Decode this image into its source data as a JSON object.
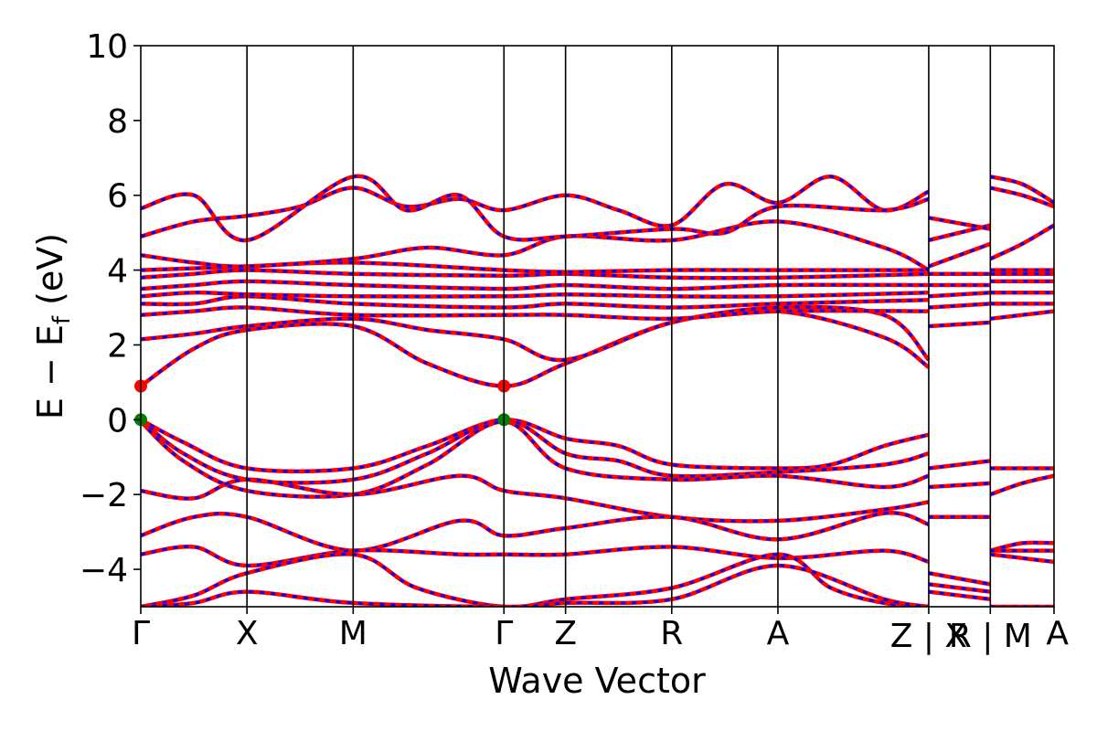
{
  "chart_data": {
    "type": "line",
    "xlabel": "Wave Vector",
    "ylabel_main": "E − E",
    "ylabel_sub": "f",
    "ylabel_unit": " (eV)",
    "ylim": [
      -5,
      10
    ],
    "yticks": [
      -4,
      -2,
      0,
      2,
      4,
      6,
      8,
      10
    ],
    "ytick_labels": [
      "−4",
      "−2",
      "0",
      "2",
      "4",
      "6",
      "8",
      "10"
    ],
    "xlim": [
      0,
      8.6
    ],
    "kpoints": [
      {
        "label": "Γ",
        "x": 0
      },
      {
        "label": "X",
        "x": 1.0
      },
      {
        "label": "M",
        "x": 2.0
      },
      {
        "label": "Γ",
        "x": 3.42
      },
      {
        "label": "Z",
        "x": 4.0
      },
      {
        "label": "R",
        "x": 5.0
      },
      {
        "label": "A",
        "x": 6.0
      },
      {
        "label": "Z | X",
        "x": 7.42
      },
      {
        "label": "R | M",
        "x": 8.0
      },
      {
        "label": "A",
        "x": 8.6
      }
    ],
    "segment_breaks": [
      7.42,
      8.0
    ],
    "colors": {
      "primary": "#ff0000",
      "overlay": "#0000ff",
      "cbm": "#ff0000",
      "vbm": "#008000",
      "grid": "#000000"
    },
    "grid": false,
    "band_extrema": [
      {
        "label": "CBM",
        "x": 0,
        "y": 0.9
      },
      {
        "label": "CBM",
        "x": 3.42,
        "y": 0.9
      },
      {
        "label": "VBM",
        "x": 0,
        "y": 0.0
      },
      {
        "label": "VBM",
        "x": 3.42,
        "y": 0.0
      }
    ],
    "series": [
      {
        "x": [
          0,
          0.5,
          1.0,
          2.0,
          2.7,
          3.42,
          4.0,
          5.0,
          6.0,
          7.0,
          7.42
        ],
        "values": [
          0.9,
          1.9,
          2.4,
          2.5,
          1.5,
          0.9,
          1.5,
          2.6,
          2.9,
          2.2,
          1.4
        ]
      },
      {
        "x": [
          0,
          0.5,
          1.0,
          2.0,
          2.7,
          3.42,
          4.0,
          5.0,
          6.0,
          7.0,
          7.42
        ],
        "values": [
          2.15,
          2.3,
          2.5,
          2.7,
          2.4,
          2.15,
          1.6,
          2.6,
          3.0,
          2.8,
          1.6
        ]
      },
      {
        "x": [
          0,
          0.5,
          1.0,
          2.0,
          3.42,
          4.0,
          5.0,
          6.0,
          7.42
        ],
        "values": [
          2.8,
          2.9,
          3.0,
          2.8,
          2.8,
          2.8,
          2.7,
          2.9,
          2.9
        ]
      },
      {
        "x": [
          0,
          0.5,
          1.0,
          2.0,
          3.42,
          4.0,
          5.0,
          6.0,
          7.42
        ],
        "values": [
          3.1,
          3.1,
          3.3,
          3.1,
          3.0,
          3.1,
          3.0,
          3.1,
          3.2
        ]
      },
      {
        "x": [
          0,
          0.5,
          1.0,
          2.0,
          3.42,
          4.0,
          5.0,
          6.0,
          7.42
        ],
        "values": [
          3.3,
          3.4,
          3.35,
          3.3,
          3.3,
          3.35,
          3.3,
          3.3,
          3.4
        ]
      },
      {
        "x": [
          0,
          0.5,
          1.0,
          2.0,
          3.42,
          4.0,
          5.0,
          6.0,
          7.42
        ],
        "values": [
          3.5,
          3.6,
          3.7,
          3.6,
          3.5,
          3.6,
          3.5,
          3.6,
          3.6
        ]
      },
      {
        "x": [
          0,
          0.5,
          1.0,
          2.0,
          3.42,
          4.0,
          5.0,
          6.0,
          7.42
        ],
        "values": [
          3.8,
          3.9,
          4.0,
          3.9,
          3.85,
          3.9,
          3.8,
          3.8,
          3.9
        ]
      },
      {
        "x": [
          0,
          0.5,
          1.0,
          2.0,
          3.42,
          4.0,
          5.0,
          6.0,
          7.42
        ],
        "values": [
          4.0,
          4.05,
          4.1,
          4.2,
          4.0,
          3.95,
          4.0,
          4.0,
          4.0
        ]
      },
      {
        "x": [
          0,
          0.5,
          1.0,
          2.0,
          2.7,
          3.42,
          4.0,
          5.0,
          6.0,
          7.0,
          7.42
        ],
        "values": [
          4.4,
          4.2,
          4.1,
          4.3,
          4.6,
          4.4,
          4.9,
          4.8,
          5.3,
          4.6,
          4.0
        ]
      },
      {
        "x": [
          0,
          0.5,
          1.0,
          1.5,
          2.0,
          2.5,
          3.0,
          3.42,
          4.0,
          4.5,
          5.0,
          5.5,
          6.0,
          6.5,
          7.0,
          7.42
        ],
        "values": [
          4.9,
          5.3,
          5.45,
          5.7,
          6.2,
          5.7,
          5.9,
          5.6,
          6.0,
          5.6,
          5.2,
          6.3,
          5.8,
          6.5,
          5.6,
          6.1
        ]
      },
      {
        "x": [
          0,
          0.5,
          1.0,
          2.0,
          2.5,
          3.0,
          3.42,
          4.0,
          5.0,
          5.5,
          6.0,
          7.0,
          7.42
        ],
        "values": [
          5.65,
          6.0,
          4.8,
          6.5,
          5.6,
          6.0,
          4.9,
          4.9,
          5.1,
          5.0,
          5.7,
          5.6,
          5.9
        ]
      },
      {
        "x": [
          0,
          0.4,
          1.0,
          2.0,
          2.7,
          3.42,
          4.0,
          4.5,
          5.0,
          6.0,
          6.5,
          7.0,
          7.42
        ],
        "values": [
          0.0,
          -0.6,
          -1.3,
          -1.3,
          -0.7,
          0.0,
          -0.5,
          -0.7,
          -1.2,
          -1.3,
          -1.2,
          -0.7,
          -0.4
        ]
      },
      {
        "x": [
          0,
          0.4,
          1.0,
          2.0,
          2.7,
          3.42,
          4.0,
          4.5,
          5.0,
          6.0,
          7.0,
          7.42
        ],
        "values": [
          0.0,
          -0.9,
          -1.6,
          -1.6,
          -0.9,
          0.0,
          -0.9,
          -1.1,
          -1.5,
          -1.4,
          -1.2,
          -0.9
        ]
      },
      {
        "x": [
          0,
          0.4,
          1.0,
          2.0,
          2.7,
          3.42,
          4.0,
          5.0,
          6.0,
          7.0,
          7.42
        ],
        "values": [
          -0.05,
          -1.1,
          -1.9,
          -2.0,
          -1.2,
          -0.05,
          -1.3,
          -1.6,
          -1.5,
          -1.8,
          -1.5
        ]
      },
      {
        "x": [
          0,
          0.5,
          1.0,
          2.0,
          3.0,
          3.42,
          4.0,
          5.0,
          6.0,
          7.0,
          7.42
        ],
        "values": [
          -1.9,
          -2.1,
          -1.6,
          -2.0,
          -1.5,
          -1.9,
          -2.1,
          -2.6,
          -2.7,
          -2.4,
          -2.2
        ]
      },
      {
        "x": [
          0,
          0.5,
          1.0,
          2.0,
          3.0,
          3.42,
          4.0,
          5.0,
          6.0,
          7.0,
          7.42
        ],
        "values": [
          -3.1,
          -2.6,
          -2.6,
          -3.5,
          -2.7,
          -3.1,
          -2.9,
          -2.6,
          -3.2,
          -2.5,
          -2.8
        ]
      },
      {
        "x": [
          0,
          0.5,
          1.0,
          2.0,
          3.0,
          3.42,
          4.0,
          5.0,
          6.0,
          7.0,
          7.42
        ],
        "values": [
          -3.6,
          -3.4,
          -3.9,
          -3.5,
          -3.6,
          -3.6,
          -3.6,
          -3.4,
          -3.7,
          -3.5,
          -3.8
        ]
      },
      {
        "x": [
          0,
          0.5,
          1.0,
          2.0,
          2.6,
          3.42,
          4.0,
          5.0,
          6.0,
          6.5,
          7.0,
          7.42
        ],
        "values": [
          -5.0,
          -4.7,
          -4.1,
          -3.6,
          -4.5,
          -5.0,
          -4.8,
          -4.5,
          -3.6,
          -4.5,
          -4.9,
          -5.0
        ]
      },
      {
        "x": [
          0,
          0.5,
          1.0,
          2.0,
          3.42,
          4.0,
          5.0,
          6.0,
          7.0,
          7.42
        ],
        "values": [
          -5.0,
          -4.9,
          -4.6,
          -4.9,
          -5.0,
          -4.9,
          -4.8,
          -3.9,
          -4.8,
          -5.0
        ]
      },
      {
        "x": [
          7.42,
          8.0
        ],
        "values": [
          2.5,
          2.6
        ]
      },
      {
        "x": [
          7.42,
          8.0
        ],
        "values": [
          3.0,
          3.1
        ]
      },
      {
        "x": [
          7.42,
          8.0
        ],
        "values": [
          3.3,
          3.4
        ]
      },
      {
        "x": [
          7.42,
          8.0
        ],
        "values": [
          3.6,
          3.6
        ]
      },
      {
        "x": [
          7.42,
          8.0
        ],
        "values": [
          3.9,
          3.9
        ]
      },
      {
        "x": [
          7.42,
          8.0
        ],
        "values": [
          4.1,
          4.7
        ]
      },
      {
        "x": [
          7.42,
          8.0
        ],
        "values": [
          4.8,
          5.2
        ]
      },
      {
        "x": [
          7.42,
          8.0
        ],
        "values": [
          5.4,
          5.1
        ]
      },
      {
        "x": [
          7.42,
          8.0
        ],
        "values": [
          -1.3,
          -1.1
        ]
      },
      {
        "x": [
          7.42,
          8.0
        ],
        "values": [
          -1.8,
          -1.7
        ]
      },
      {
        "x": [
          7.42,
          8.0
        ],
        "values": [
          -2.6,
          -2.6
        ]
      },
      {
        "x": [
          7.42,
          8.0
        ],
        "values": [
          -4.1,
          -4.4
        ]
      },
      {
        "x": [
          7.42,
          8.0
        ],
        "values": [
          -4.4,
          -4.6
        ]
      },
      {
        "x": [
          7.42,
          8.0
        ],
        "values": [
          -4.6,
          -4.8
        ]
      },
      {
        "x": [
          8.0,
          8.3,
          8.6
        ],
        "values": [
          2.7,
          2.8,
          2.9
        ]
      },
      {
        "x": [
          8.0,
          8.3,
          8.6
        ],
        "values": [
          3.1,
          3.1,
          3.1
        ]
      },
      {
        "x": [
          8.0,
          8.3,
          8.6
        ],
        "values": [
          3.4,
          3.4,
          3.4
        ]
      },
      {
        "x": [
          8.0,
          8.3,
          8.6
        ],
        "values": [
          3.7,
          3.7,
          3.7
        ]
      },
      {
        "x": [
          8.0,
          8.3,
          8.6
        ],
        "values": [
          3.9,
          3.9,
          3.9
        ]
      },
      {
        "x": [
          8.0,
          8.3,
          8.6
        ],
        "values": [
          4.0,
          4.0,
          4.0
        ]
      },
      {
        "x": [
          8.0,
          8.3,
          8.6
        ],
        "values": [
          4.3,
          4.7,
          5.2
        ]
      },
      {
        "x": [
          8.0,
          8.3,
          8.6
        ],
        "values": [
          6.2,
          6.0,
          5.7
        ]
      },
      {
        "x": [
          8.0,
          8.3,
          8.6
        ],
        "values": [
          6.5,
          6.3,
          5.8
        ]
      },
      {
        "x": [
          8.0,
          8.3,
          8.6
        ],
        "values": [
          -1.3,
          -1.3,
          -1.3
        ]
      },
      {
        "x": [
          8.0,
          8.3,
          8.6
        ],
        "values": [
          -2.0,
          -1.7,
          -1.5
        ]
      },
      {
        "x": [
          8.0,
          8.3,
          8.6
        ],
        "values": [
          -3.5,
          -3.3,
          -3.3
        ]
      },
      {
        "x": [
          8.0,
          8.3,
          8.6
        ],
        "values": [
          -3.5,
          -3.5,
          -3.5
        ]
      },
      {
        "x": [
          8.0,
          8.3,
          8.6
        ],
        "values": [
          -3.6,
          -3.7,
          -3.8
        ]
      },
      {
        "x": [
          8.0,
          8.3,
          8.6
        ],
        "values": [
          -5.0,
          -5.0,
          -5.0
        ]
      }
    ]
  }
}
